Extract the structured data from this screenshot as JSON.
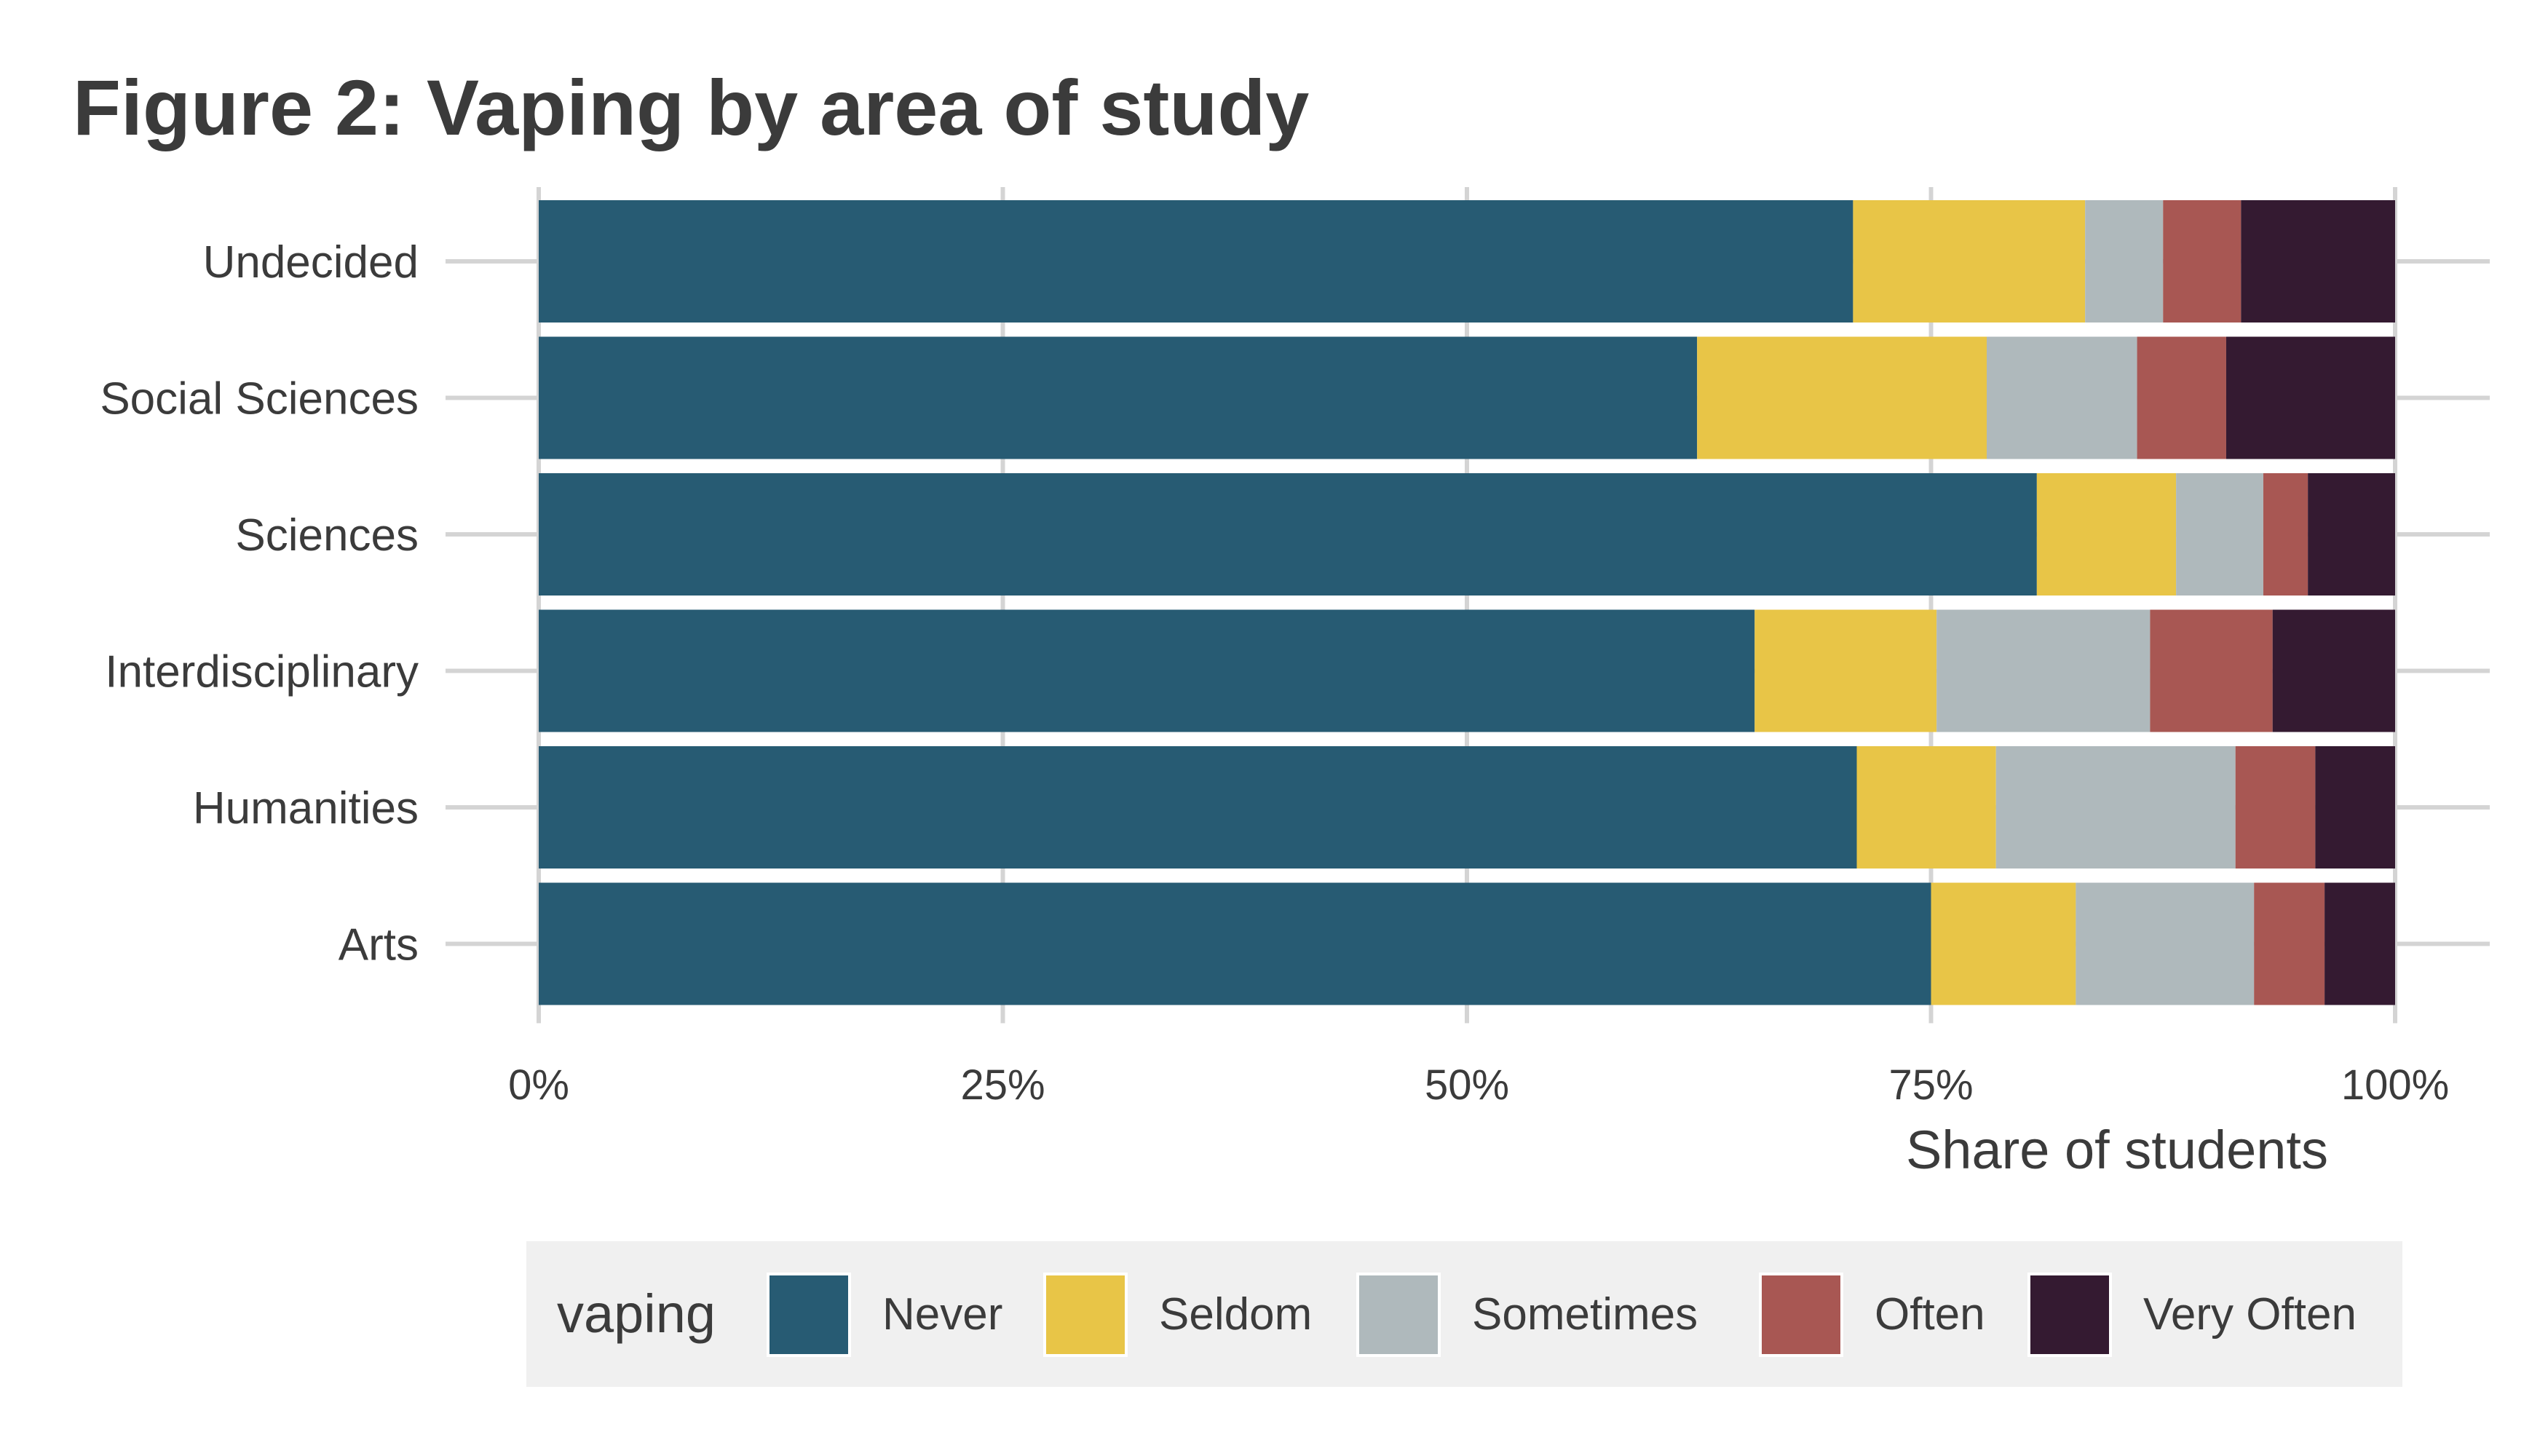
{
  "chart_data": {
    "type": "bar",
    "orientation": "horizontal",
    "stacked": "percent",
    "title": "Figure 2: Vaping by area of study",
    "xlabel": "Share of students",
    "ylabel": "",
    "xlim": [
      0,
      100
    ],
    "x_ticks": [
      "0%",
      "25%",
      "50%",
      "75%",
      "100%"
    ],
    "x_tick_values": [
      0,
      25,
      50,
      75,
      100
    ],
    "grid": true,
    "legend": {
      "title": "vaping",
      "position": "bottom"
    },
    "categories": [
      "Undecided",
      "Social Sciences",
      "Sciences",
      "Interdisciplinary",
      "Humanities",
      "Arts"
    ],
    "series": [
      {
        "name": "Never",
        "color": "#275b73",
        "values": [
          70.8,
          62.4,
          80.7,
          65.5,
          71.0,
          75.0
        ]
      },
      {
        "name": "Seldom",
        "color": "#e8c547",
        "values": [
          12.5,
          15.6,
          7.5,
          9.8,
          7.5,
          7.8
        ]
      },
      {
        "name": "Sometimes",
        "color": "#afb9bc",
        "values": [
          4.2,
          8.1,
          4.7,
          11.5,
          12.9,
          9.6
        ]
      },
      {
        "name": "Often",
        "color": "#a85753",
        "values": [
          4.2,
          4.8,
          2.4,
          6.6,
          4.3,
          3.8
        ]
      },
      {
        "name": "Very Often",
        "color": "#341a31",
        "values": [
          8.3,
          9.1,
          4.7,
          6.6,
          4.3,
          3.8
        ]
      }
    ]
  }
}
